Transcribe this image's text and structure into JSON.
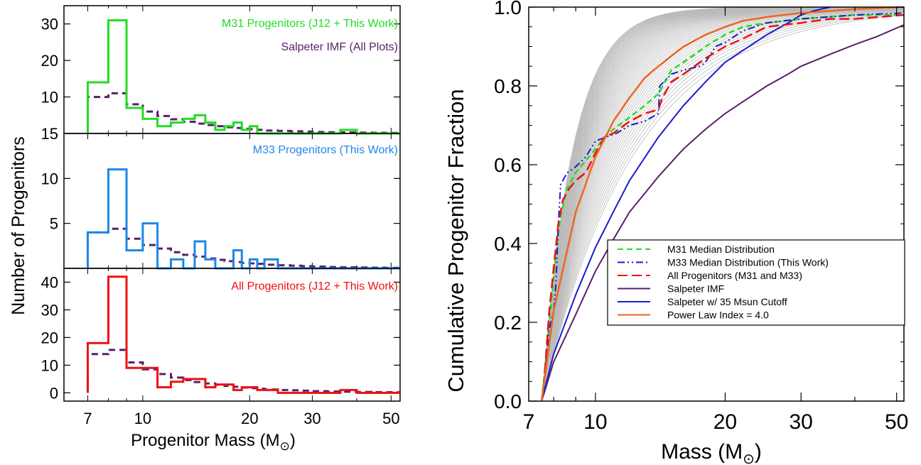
{
  "colors": {
    "m31": "#22dd22",
    "m33": "#1e88e5",
    "all": "#ee1111",
    "salpeter": "#5a1f6a",
    "salpeter_cutoff": "#1a1acc",
    "powerlaw": "#ee6622",
    "mc": "#bbbbbb"
  },
  "chart_data": [
    {
      "type": "histogram",
      "panel": "top",
      "label": "M31 Progenitors (J12 + This Work)",
      "label2": "Salpeter IMF (All Plots)",
      "xscale": "log",
      "xlim": [
        6,
        53
      ],
      "ylim": [
        0,
        35
      ],
      "yticks": [
        10,
        20,
        30
      ],
      "bins": [
        7,
        8,
        9,
        10,
        11,
        12,
        13,
        14,
        15,
        16,
        17,
        18,
        19,
        20,
        21,
        22,
        24,
        26,
        28,
        30,
        33,
        36,
        40,
        44,
        48,
        53
      ],
      "counts": [
        14,
        31,
        7,
        4,
        2,
        3,
        4,
        5,
        3,
        1,
        2,
        3,
        1,
        2,
        0,
        0,
        0,
        0,
        0,
        0,
        0,
        1,
        0,
        0,
        0
      ],
      "salpeter": [
        10,
        11,
        8,
        6,
        4.8,
        3.9,
        3.2,
        2.7,
        2.3,
        2.0,
        1.7,
        1.5,
        1.3,
        1.2,
        1.0,
        0.8,
        0.7,
        0.6,
        0.5,
        0.4,
        0.35,
        0.3,
        0.25,
        0.2,
        0.15
      ]
    },
    {
      "type": "histogram",
      "panel": "middle",
      "label": "M33 Progenitors (This Work)",
      "xscale": "log",
      "xlim": [
        6,
        53
      ],
      "ylim": [
        0,
        15
      ],
      "yticks": [
        5,
        10,
        15
      ],
      "bins": [
        7,
        8,
        9,
        10,
        11,
        12,
        13,
        14,
        15,
        16,
        17,
        18,
        19,
        20,
        21,
        22,
        24,
        26,
        28,
        30,
        33,
        36,
        40,
        44,
        48,
        53
      ],
      "counts": [
        4,
        11,
        2,
        5,
        0,
        1,
        0,
        3,
        1,
        0,
        0,
        2,
        0,
        1,
        0,
        1,
        0,
        0,
        0,
        0,
        0,
        0,
        0,
        0,
        0
      ],
      "salpeter": [
        4,
        4.4,
        3.3,
        2.6,
        2.2,
        1.8,
        1.5,
        1.3,
        1.1,
        0.95,
        0.8,
        0.7,
        0.6,
        0.55,
        0.5,
        0.4,
        0.35,
        0.3,
        0.25,
        0.2,
        0.15,
        0.12,
        0.1,
        0.08,
        0.06
      ]
    },
    {
      "type": "histogram",
      "panel": "bottom",
      "label": "All Progenitors (J12 + This Work)",
      "xscale": "log",
      "xlim": [
        6,
        53
      ],
      "ylim": [
        -3,
        45
      ],
      "yticks": [
        0,
        10,
        20,
        30,
        40
      ],
      "xticks": [
        7,
        10,
        20,
        30,
        50
      ],
      "xlabel": "Progenitor Mass (M",
      "ylabel": "Number of Progenitors",
      "bins": [
        7,
        8,
        9,
        10,
        11,
        12,
        13,
        14,
        15,
        16,
        17,
        18,
        19,
        20,
        21,
        22,
        24,
        26,
        28,
        30,
        33,
        36,
        40,
        44,
        48,
        53
      ],
      "counts": [
        18,
        42,
        9,
        9,
        2,
        4,
        5,
        5,
        2,
        3,
        3,
        1,
        2,
        2,
        1,
        1,
        0,
        0,
        0,
        0,
        0,
        1,
        0,
        0,
        0
      ],
      "salpeter": [
        14,
        15.5,
        11,
        8.5,
        6.8,
        5.5,
        4.6,
        3.9,
        3.4,
        2.9,
        2.5,
        2.2,
        1.9,
        1.7,
        1.5,
        1.2,
        1.0,
        0.9,
        0.8,
        0.6,
        0.5,
        0.4,
        0.3,
        0.25,
        0.2
      ]
    },
    {
      "type": "line",
      "panel": "right",
      "xscale": "log",
      "xlim": [
        7,
        52
      ],
      "ylim": [
        0,
        1.0
      ],
      "xticks": [
        7,
        10,
        20,
        30,
        50
      ],
      "yticks": [
        "0.0",
        "0.2",
        "0.4",
        "0.6",
        "0.8",
        "1.0"
      ],
      "xlabel": "Mass (M",
      "ylabel": "Cumulative Progenitor Fraction",
      "legend_position": "center-right",
      "series": [
        {
          "name": "M31 Median Distribution",
          "style": "dashed",
          "x": [
            7.5,
            7.7,
            7.9,
            8.1,
            8.3,
            8.6,
            9.0,
            9.5,
            10.0,
            10.5,
            11.0,
            12.0,
            13.0,
            14.0,
            15.0,
            16.0,
            17.0,
            18.0,
            20.0,
            22.0,
            25.0,
            30.0,
            40.0,
            52.0
          ],
          "y": [
            0.0,
            0.12,
            0.25,
            0.38,
            0.47,
            0.54,
            0.58,
            0.61,
            0.64,
            0.67,
            0.69,
            0.72,
            0.75,
            0.78,
            0.84,
            0.86,
            0.88,
            0.9,
            0.93,
            0.95,
            0.96,
            0.97,
            0.98,
            0.98
          ]
        },
        {
          "name": "M33 Median Distribution (This Work)",
          "style": "dashdotdot",
          "x": [
            7.5,
            7.6,
            7.8,
            8.0,
            8.1,
            8.2,
            8.3,
            8.6,
            8.9,
            9.1,
            9.5,
            10.0,
            10.6,
            11.2,
            12.0,
            13.0,
            14.0,
            14.1,
            15.0,
            16.0,
            17.5,
            18.0,
            19.0,
            20.0,
            22.0,
            25.0,
            30.0,
            40.0,
            52.0
          ],
          "y": [
            0.0,
            0.04,
            0.18,
            0.23,
            0.3,
            0.45,
            0.55,
            0.58,
            0.59,
            0.6,
            0.62,
            0.66,
            0.67,
            0.68,
            0.7,
            0.71,
            0.73,
            0.8,
            0.83,
            0.84,
            0.85,
            0.86,
            0.9,
            0.91,
            0.94,
            0.96,
            0.97,
            0.98,
            0.985
          ]
        },
        {
          "name": "All Progenitors (M31 and M33)",
          "style": "longdash",
          "x": [
            7.5,
            7.6,
            7.8,
            8.0,
            8.2,
            8.4,
            8.7,
            9.0,
            9.5,
            10.0,
            10.5,
            11.0,
            12.0,
            13.0,
            14.0,
            14.3,
            15.0,
            16.0,
            17.0,
            18.0,
            20.0,
            22.0,
            25.0,
            30.0,
            35.0,
            40.0,
            52.0
          ],
          "y": [
            0.0,
            0.05,
            0.22,
            0.34,
            0.45,
            0.51,
            0.54,
            0.56,
            0.58,
            0.63,
            0.67,
            0.68,
            0.71,
            0.73,
            0.74,
            0.77,
            0.81,
            0.83,
            0.85,
            0.87,
            0.9,
            0.92,
            0.95,
            0.96,
            0.97,
            0.97,
            0.98
          ]
        },
        {
          "name": "Salpeter IMF",
          "style": "solid",
          "x": [
            7.5,
            8,
            9,
            10,
            11,
            12,
            14,
            16,
            18,
            20,
            22,
            25,
            28,
            30,
            35,
            40,
            45,
            52
          ],
          "y": [
            0.0,
            0.1,
            0.22,
            0.33,
            0.41,
            0.48,
            0.57,
            0.64,
            0.69,
            0.73,
            0.76,
            0.8,
            0.83,
            0.85,
            0.88,
            0.905,
            0.925,
            0.955
          ]
        },
        {
          "name": "Salpeter w/ 35 Msun Cutoff",
          "style": "solid",
          "x": [
            7.5,
            8,
            9,
            10,
            11,
            12,
            14,
            16,
            18,
            20,
            22,
            25,
            28,
            30,
            32,
            35
          ],
          "y": [
            0.0,
            0.12,
            0.27,
            0.39,
            0.48,
            0.56,
            0.67,
            0.75,
            0.81,
            0.86,
            0.89,
            0.93,
            0.96,
            0.98,
            0.99,
            1.0
          ]
        },
        {
          "name": "Power Law Index = 4.0",
          "style": "solid",
          "x": [
            7.5,
            8,
            9,
            10,
            11,
            12,
            13,
            14,
            16,
            18,
            20,
            22,
            25,
            30,
            35,
            40,
            52
          ],
          "y": [
            0.0,
            0.23,
            0.48,
            0.62,
            0.71,
            0.77,
            0.82,
            0.85,
            0.9,
            0.93,
            0.95,
            0.965,
            0.975,
            0.985,
            0.99,
            0.995,
            1.0
          ]
        }
      ]
    }
  ]
}
